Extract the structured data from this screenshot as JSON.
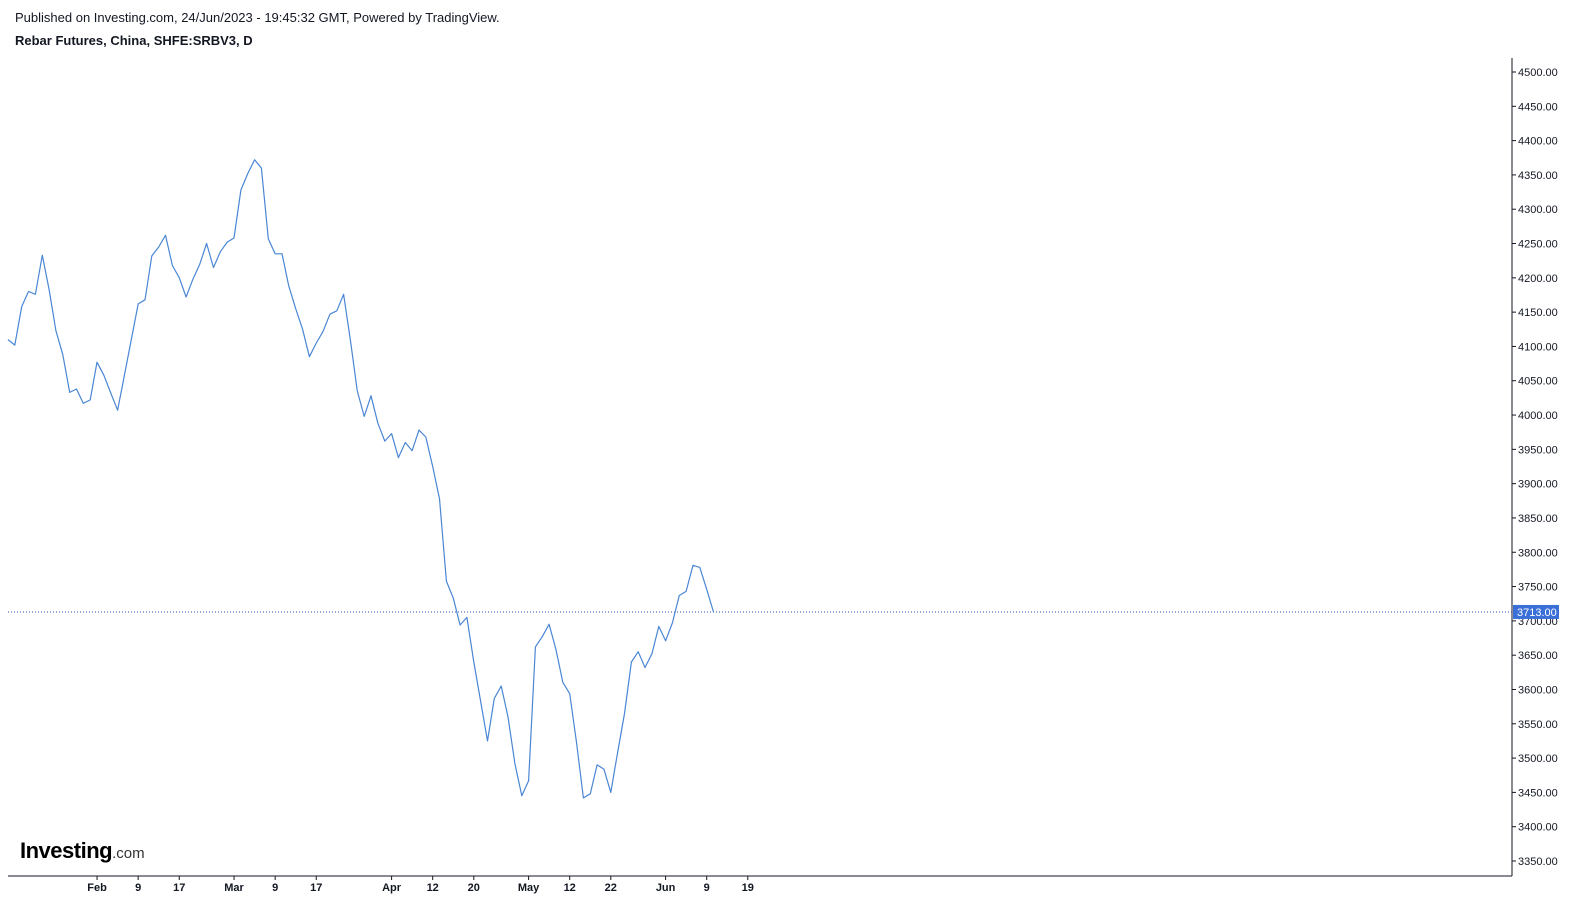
{
  "header": {
    "published": "Published on Investing.com, 24/Jun/2023 - 19:45:32 GMT, Powered by TradingView.",
    "symbol": "Rebar Futures, China, SHFE:SRBV3, D"
  },
  "logo": {
    "brand": "Investing",
    "suffix": ".com"
  },
  "colors": {
    "line": "#4a86d4",
    "last_price_badge": "#3a6fd8",
    "axis": "#131722",
    "dotted_line": "#2b4fb3"
  },
  "chart_data": {
    "type": "line",
    "last_price_label": "3713.00",
    "last_price": 3713,
    "ylim": [
      3320,
      4520
    ],
    "y_ticks": [
      "3350.00",
      "3400.00",
      "3450.00",
      "3500.00",
      "3550.00",
      "3600.00",
      "3650.00",
      "3700.00",
      "3750.00",
      "3800.00",
      "3850.00",
      "3900.00",
      "3950.00",
      "4000.00",
      "4050.00",
      "4100.00",
      "4150.00",
      "4200.00",
      "4250.00",
      "4300.00",
      "4350.00",
      "4400.00",
      "4450.00",
      "4500.00"
    ],
    "x_ticks": [
      {
        "label": "Feb",
        "index": 13
      },
      {
        "label": "9",
        "index": 19
      },
      {
        "label": "17",
        "index": 25
      },
      {
        "label": "Mar",
        "index": 33
      },
      {
        "label": "9",
        "index": 39
      },
      {
        "label": "17",
        "index": 45
      },
      {
        "label": "Apr",
        "index": 56
      },
      {
        "label": "12",
        "index": 62
      },
      {
        "label": "20",
        "index": 68
      },
      {
        "label": "May",
        "index": 76
      },
      {
        "label": "12",
        "index": 82
      },
      {
        "label": "22",
        "index": 88
      },
      {
        "label": "Jun",
        "index": 96
      },
      {
        "label": "9",
        "index": 102
      },
      {
        "label": "19",
        "index": 108
      }
    ],
    "x_count": 120,
    "series": [
      {
        "values": [
          4110,
          4102,
          4158,
          4180,
          4176,
          4233,
          4183,
          4123,
          4088,
          4033,
          4038,
          4017,
          4022,
          4077,
          4058,
          4032,
          4007,
          4058,
          4110,
          4162,
          4168,
          4232,
          4245,
          4262,
          4218,
          4200,
          4172,
          4198,
          4220,
          4250,
          4215,
          4238,
          4252,
          4258,
          4328,
          4352,
          4372,
          4360,
          4257,
          4235,
          4235,
          4188,
          4155,
          4125,
          4085,
          4105,
          4122,
          4147,
          4152,
          4176,
          4108,
          4035,
          3998,
          4028,
          3988,
          3962,
          3973,
          3938,
          3960,
          3948,
          3978,
          3968,
          3925,
          3878,
          3758,
          3733,
          3694,
          3705,
          3640,
          3583,
          3525,
          3587,
          3605,
          3560,
          3492,
          3445,
          3467,
          3662,
          3677,
          3695,
          3658,
          3610,
          3594,
          3523,
          3442,
          3448,
          3490,
          3484,
          3450,
          3508,
          3565,
          3640,
          3655,
          3632,
          3652,
          3692,
          3671,
          3697,
          3737,
          3743,
          3781,
          3778,
          3746,
          3713
        ]
      }
    ]
  }
}
